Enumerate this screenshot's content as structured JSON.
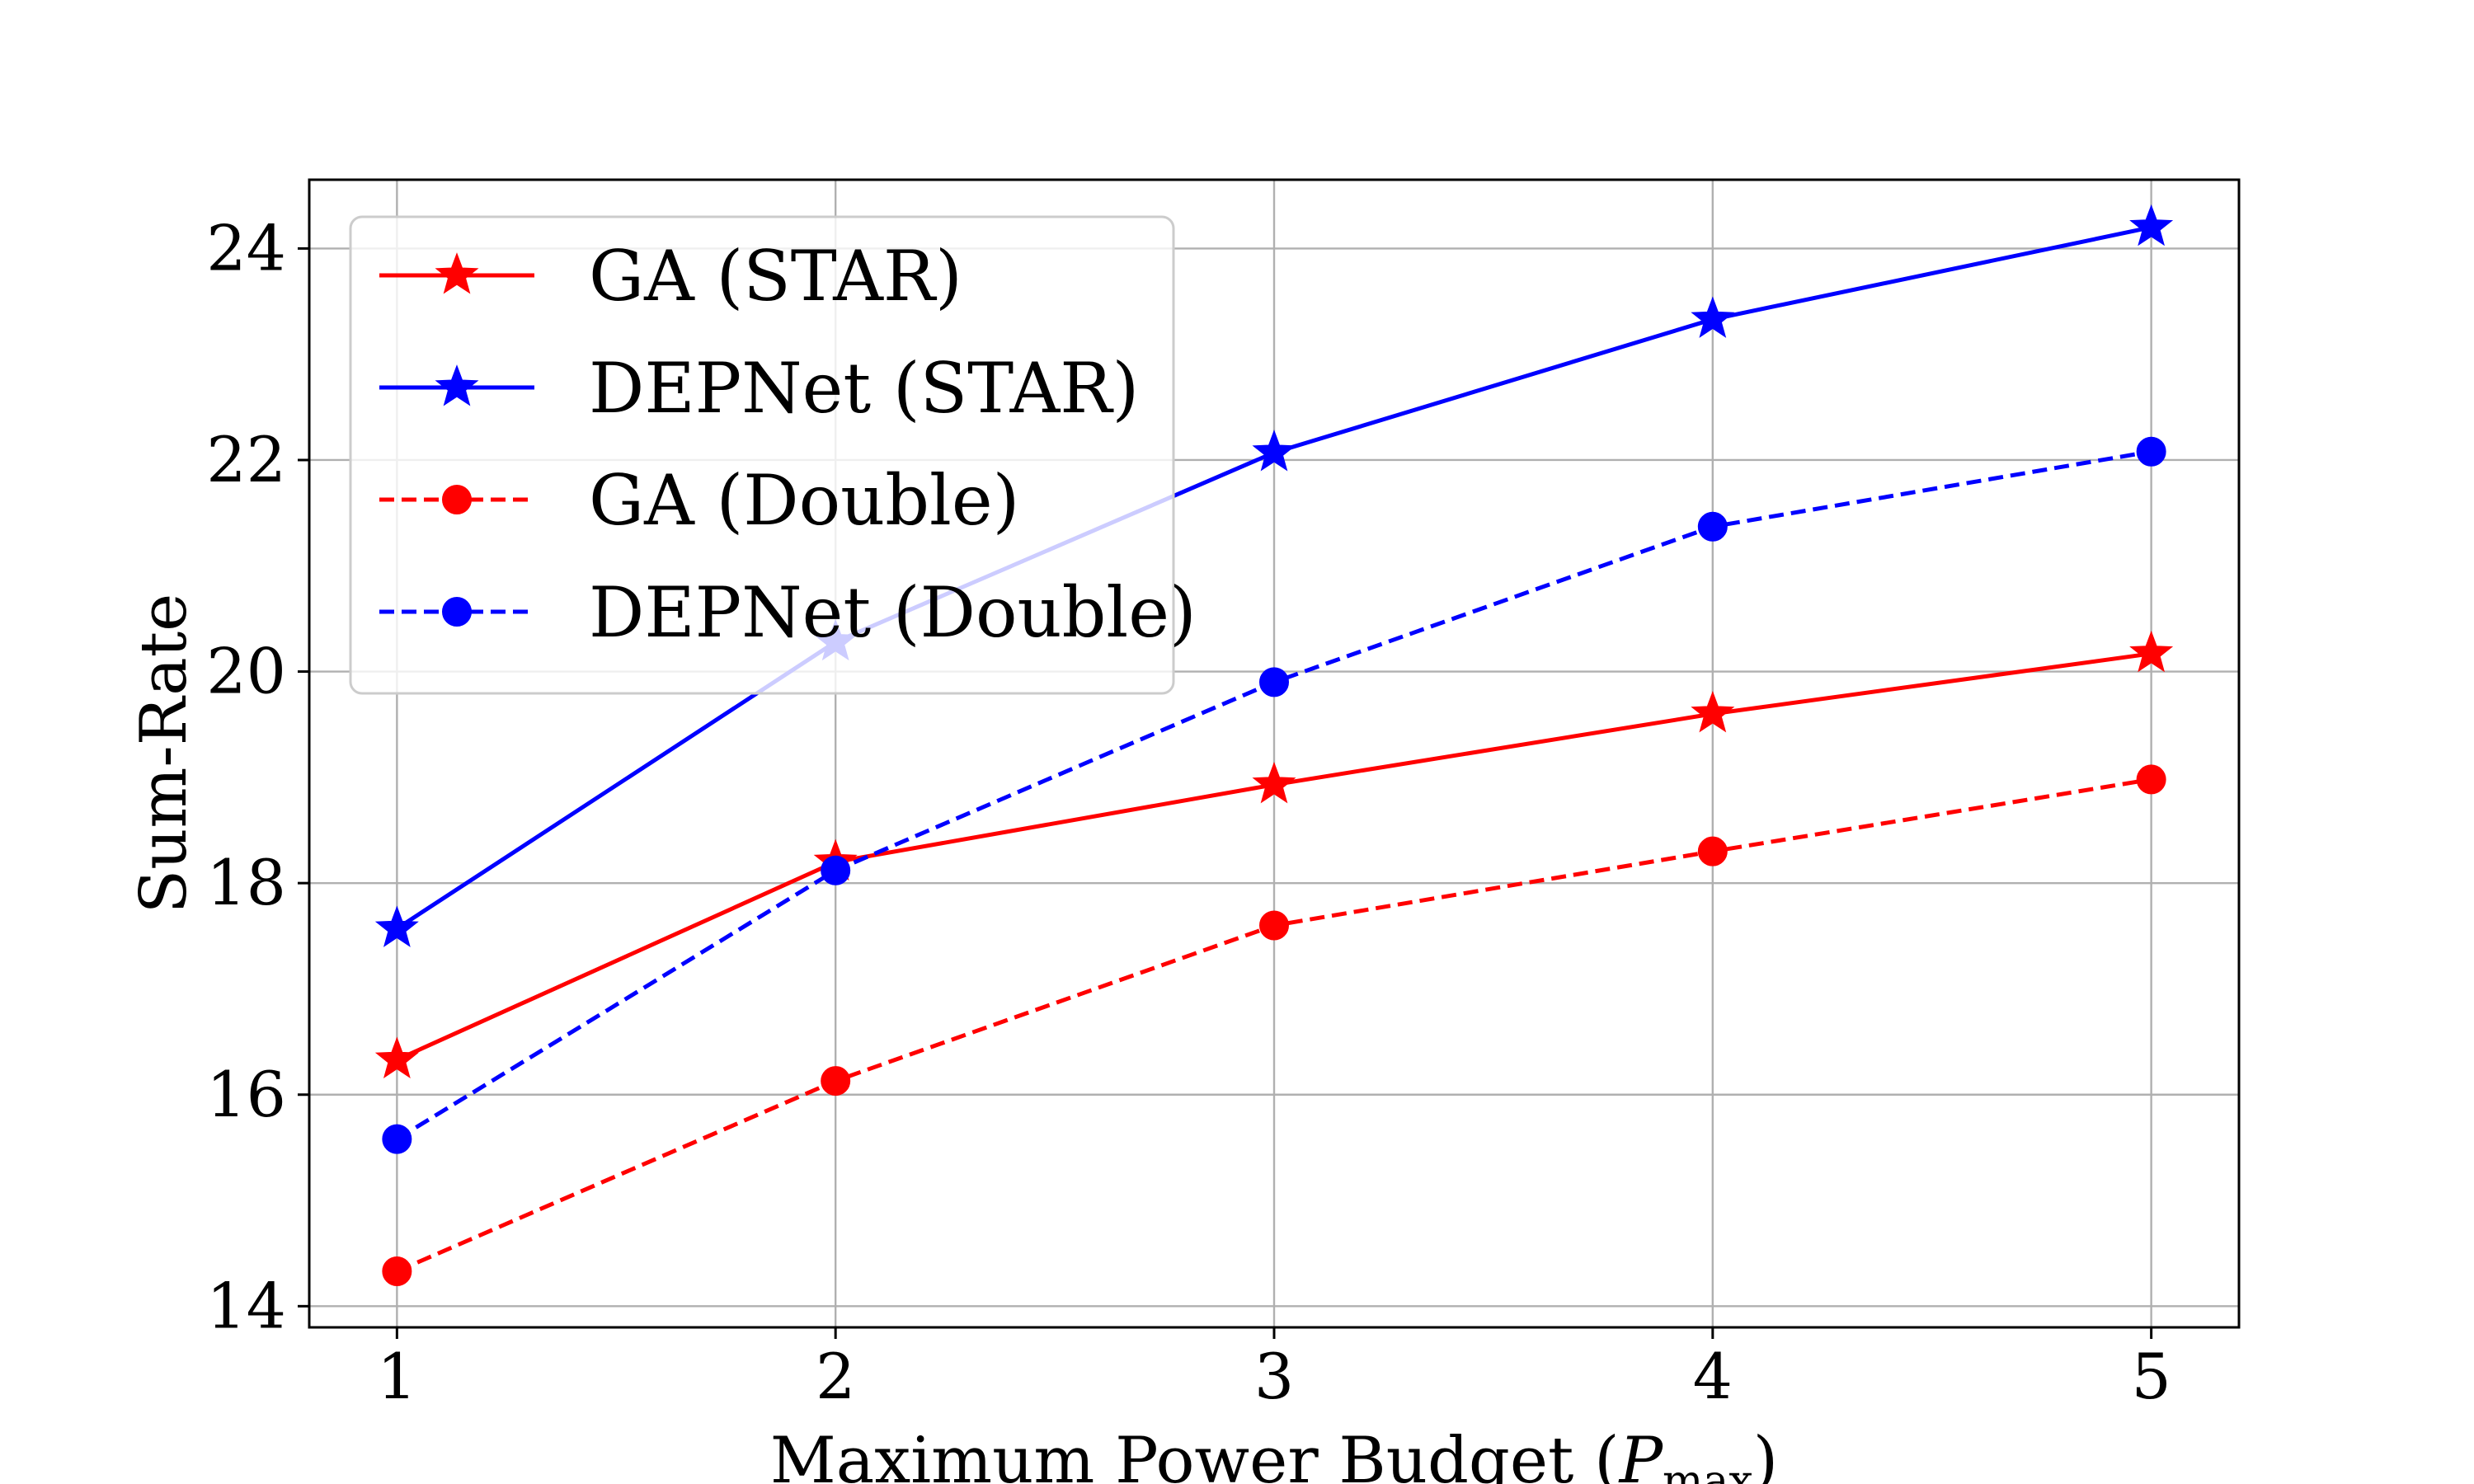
{
  "chart_data": {
    "type": "line",
    "title": "",
    "xlabel": "Maximum Power Budget",
    "xlabel_symbol": "P",
    "xlabel_subscript": "max",
    "ylabel": "Sum-Rate",
    "x": [
      1,
      2,
      3,
      4,
      5
    ],
    "x_ticks": [
      "1",
      "2",
      "3",
      "4",
      "5"
    ],
    "y_ticks": [
      "14",
      "16",
      "18",
      "20",
      "22",
      "24"
    ],
    "xlim": [
      0.8,
      5.2
    ],
    "ylim": [
      13.8,
      24.65
    ],
    "grid": true,
    "legend_position": "top-left",
    "series": [
      {
        "name": "GA (STAR)",
        "color": "#ff0000",
        "linestyle": "solid",
        "marker": "star",
        "values": [
          16.33,
          18.2,
          18.93,
          19.6,
          20.17
        ]
      },
      {
        "name": "DEPNet (STAR)",
        "color": "#0000ff",
        "linestyle": "solid",
        "marker": "star",
        "values": [
          17.57,
          20.28,
          22.07,
          23.33,
          24.2
        ]
      },
      {
        "name": "GA (Double)",
        "color": "#ff0000",
        "linestyle": "dashed",
        "marker": "circle",
        "values": [
          14.33,
          16.13,
          17.6,
          18.3,
          18.98
        ]
      },
      {
        "name": "DEPNet (Double)",
        "color": "#0000ff",
        "linestyle": "dashed",
        "marker": "circle",
        "values": [
          15.58,
          18.12,
          19.9,
          21.37,
          22.08
        ]
      }
    ]
  }
}
